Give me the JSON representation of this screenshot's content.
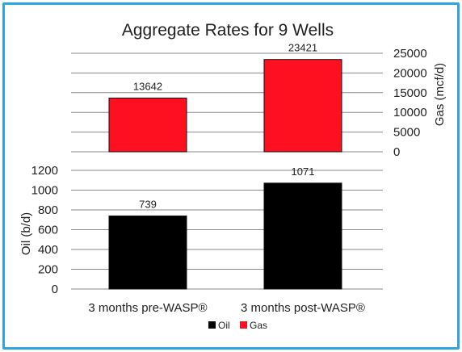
{
  "chart_data": {
    "type": "bar",
    "title": "Aggregate Rates for 9 Wells",
    "categories": [
      "3 months pre-WASP®",
      "3 months post-WASP®"
    ],
    "legend": {
      "position": "bottom",
      "entries": [
        "Oil",
        "Gas"
      ]
    },
    "colors": {
      "Oil": "#000000",
      "Gas": "#ff1020"
    },
    "grid": true,
    "panels": [
      {
        "series": "Gas",
        "values": [
          13642,
          23421
        ],
        "ylabel": "Gas (mcf/d)",
        "axis_side": "right",
        "ylim": [
          0,
          25000
        ],
        "ticks": [
          0,
          5000,
          10000,
          15000,
          20000,
          25000
        ]
      },
      {
        "series": "Oil",
        "values": [
          739,
          1071
        ],
        "ylabel": "Oil (b/d)",
        "axis_side": "left",
        "ylim": [
          0,
          1200
        ],
        "ticks": [
          0,
          200,
          400,
          600,
          800,
          1000,
          1200
        ]
      }
    ]
  }
}
